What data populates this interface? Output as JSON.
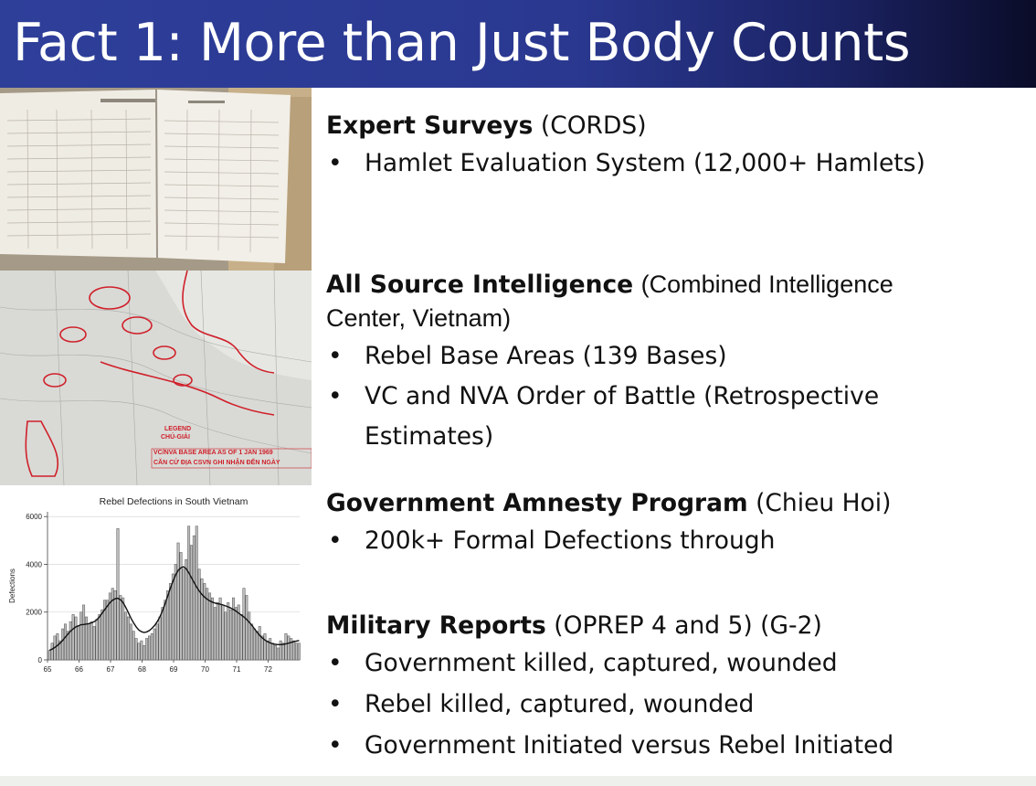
{
  "slide": {
    "title": "Fact 1: More than Just Body Counts",
    "colors": {
      "title_bar": "#2e3f9a",
      "title_text": "#ffffff",
      "map_markings": "#d0202a"
    }
  },
  "images": {
    "ledger": {
      "icon": "ledger-photo"
    },
    "map": {
      "icon": "map-photo",
      "legend_title": "LEGEND",
      "legend_subtitle": "CHÚ-GIẢI",
      "legend_line1": "VC/NVA BASE AREA AS OF 1 JAN 1969",
      "legend_line2": "CĂN CỨ ĐỊA CSVN GHI NHẬN ĐẾN NGÀY"
    }
  },
  "chart_data": {
    "type": "bar",
    "title": "Rebel Defections in South Vietnam",
    "ylabel": "Defections",
    "xlabel": "",
    "ylim": [
      0,
      6200
    ],
    "xlim": [
      65,
      73
    ],
    "yticks": [
      "0",
      "2000",
      "4000",
      "6000"
    ],
    "xticks": [
      "65",
      "66",
      "67",
      "68",
      "69",
      "70",
      "71",
      "72"
    ],
    "trend_line": true,
    "x": [
      65.0,
      65.083,
      65.167,
      65.25,
      65.333,
      65.417,
      65.5,
      65.583,
      65.667,
      65.75,
      65.833,
      65.917,
      66.0,
      66.083,
      66.167,
      66.25,
      66.333,
      66.417,
      66.5,
      66.583,
      66.667,
      66.75,
      66.833,
      66.917,
      67.0,
      67.083,
      67.167,
      67.25,
      67.333,
      67.417,
      67.5,
      67.583,
      67.667,
      67.75,
      67.833,
      67.917,
      68.0,
      68.083,
      68.167,
      68.25,
      68.333,
      68.417,
      68.5,
      68.583,
      68.667,
      68.75,
      68.833,
      68.917,
      69.0,
      69.083,
      69.167,
      69.25,
      69.333,
      69.417,
      69.5,
      69.583,
      69.667,
      69.75,
      69.833,
      69.917,
      70.0,
      70.083,
      70.167,
      70.25,
      70.333,
      70.417,
      70.5,
      70.583,
      70.667,
      70.75,
      70.833,
      70.917,
      71.0,
      71.083,
      71.167,
      71.25,
      71.333,
      71.417,
      71.5,
      71.583,
      71.667,
      71.75,
      71.833,
      71.917,
      72.0,
      72.083,
      72.167,
      72.25,
      72.333,
      72.417,
      72.5,
      72.583,
      72.667,
      72.75,
      72.833,
      72.917
    ],
    "values": [
      400,
      700,
      1000,
      1100,
      800,
      1300,
      1500,
      1200,
      1600,
      1900,
      1800,
      1400,
      2000,
      2300,
      1800,
      1500,
      1600,
      1400,
      1700,
      1900,
      2100,
      2500,
      2500,
      2800,
      3000,
      2900,
      5500,
      2700,
      2600,
      2000,
      1800,
      1500,
      1200,
      900,
      700,
      800,
      600,
      900,
      1000,
      1100,
      1300,
      1500,
      1800,
      2200,
      2500,
      2900,
      3200,
      3600,
      4000,
      4900,
      4500,
      3800,
      4200,
      5600,
      4800,
      5200,
      5600,
      3800,
      3400,
      3200,
      3000,
      2800,
      2600,
      2200,
      2400,
      2600,
      2300,
      2000,
      2400,
      2100,
      2600,
      2200,
      2300,
      1900,
      3000,
      2700,
      2000,
      1500,
      1300,
      1200,
      1400,
      1000,
      1100,
      800,
      900,
      700,
      600,
      500,
      800,
      700,
      1100,
      1000,
      900,
      800,
      700,
      700
    ],
    "trend": [
      400,
      450,
      520,
      600,
      700,
      820,
      950,
      1080,
      1200,
      1300,
      1380,
      1430,
      1470,
      1480,
      1500,
      1520,
      1550,
      1600,
      1680,
      1800,
      1950,
      2100,
      2250,
      2400,
      2500,
      2560,
      2580,
      2520,
      2400,
      2200,
      1980,
      1750,
      1550,
      1380,
      1250,
      1180,
      1150,
      1170,
      1230,
      1320,
      1440,
      1600,
      1800,
      2050,
      2350,
      2680,
      3000,
      3300,
      3550,
      3750,
      3850,
      3900,
      3820,
      3650,
      3450,
      3250,
      3050,
      2880,
      2740,
      2630,
      2540,
      2470,
      2420,
      2380,
      2350,
      2330,
      2300,
      2260,
      2220,
      2170,
      2110,
      2040,
      1960,
      1880,
      1800,
      1700,
      1580,
      1450,
      1300,
      1160,
      1030,
      920,
      830,
      760,
      710,
      670,
      650,
      640,
      640,
      650,
      670,
      700,
      730,
      760,
      790,
      810
    ]
  },
  "sections": [
    {
      "heading": "Expert Surveys",
      "heading_note": "(CORDS)",
      "bullets": [
        "Hamlet Evaluation System (12,000+ Hamlets)"
      ]
    },
    {
      "heading": "All Source Intelligence",
      "heading_note": "(Combined Intelligence Center, Vietnam)",
      "bullets": [
        "Rebel Base Areas (139 Bases)",
        "VC and NVA Order of Battle (Retrospective Estimates)"
      ]
    },
    {
      "heading": "Government Amnesty Program",
      "heading_note": "(Chieu Hoi)",
      "bullets": [
        "200k+ Formal Defections through"
      ]
    },
    {
      "heading": "Military Reports",
      "heading_note": "(OPREP 4 and 5) (G-2)",
      "bullets": [
        "Government killed, captured, wounded",
        "Rebel killed, captured, wounded",
        "Government Initiated versus Rebel Initiated"
      ]
    }
  ],
  "bullet_glyph": "•"
}
